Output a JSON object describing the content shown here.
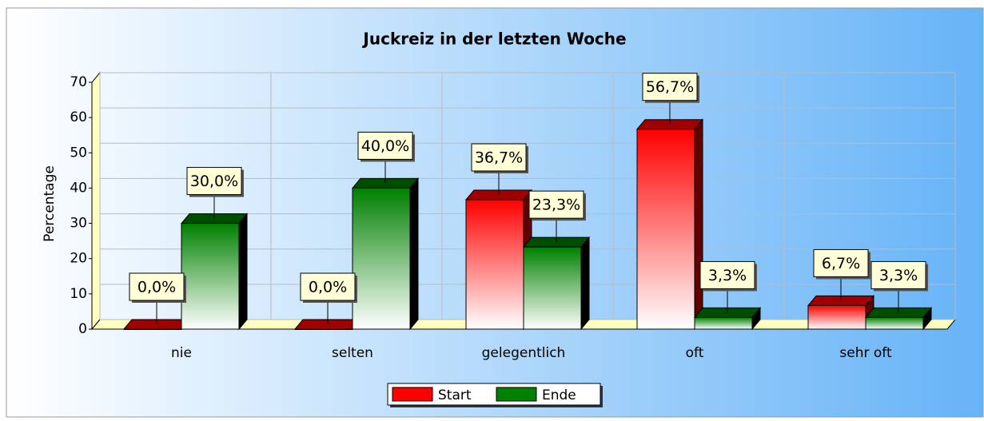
{
  "chart_data": {
    "type": "bar",
    "title": "Juckreiz in der letzten Woche",
    "y_label": "Percentage",
    "categories": [
      "nie",
      "selten",
      "gelegentlich",
      "oft",
      "sehr oft"
    ],
    "series": [
      {
        "name": "Start",
        "color": "#ff0000",
        "values": [
          0,
          0,
          36.7,
          56.7,
          6.7
        ],
        "value_labels": [
          "0,0%",
          "0,0%",
          "36,7%",
          "56,7%",
          "6,7%"
        ]
      },
      {
        "name": "Ende",
        "color": "#008000",
        "values": [
          30,
          40,
          23.3,
          3.3,
          3.3
        ],
        "value_labels": [
          "30,0%",
          "40,0%",
          "23,3%",
          "3,3%",
          "3,3%"
        ]
      }
    ],
    "ylim": [
      0,
      70
    ],
    "yticks": [
      0,
      10,
      20,
      30,
      40,
      50,
      60,
      70
    ],
    "grid": true,
    "legend": "bottom"
  }
}
